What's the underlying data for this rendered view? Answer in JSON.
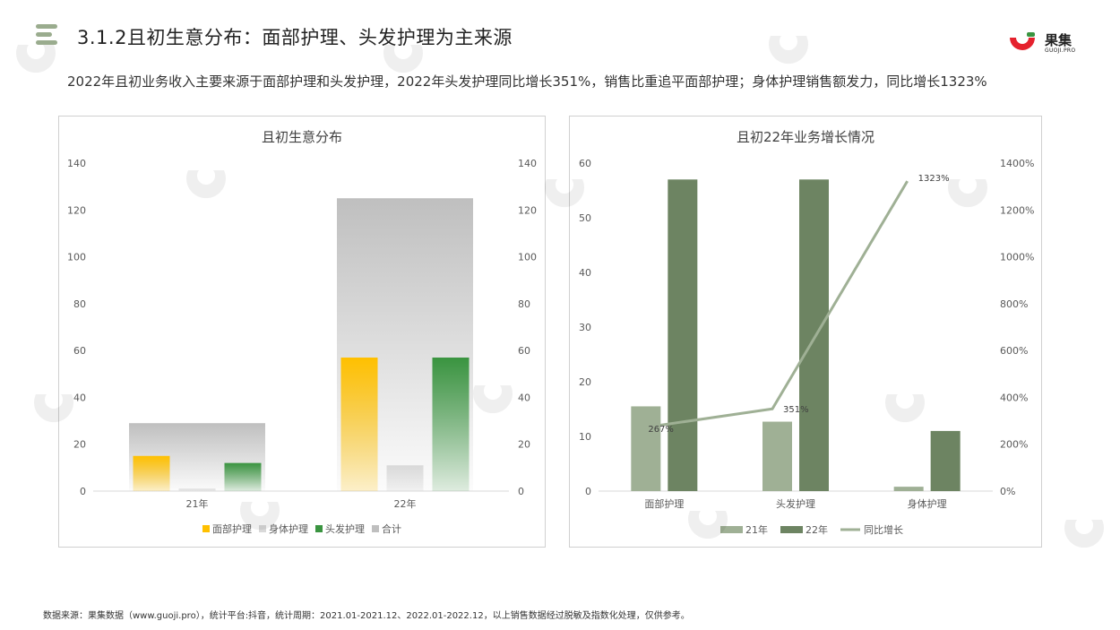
{
  "header": {
    "title": "3.1.2且初生意分布：面部护理、头发护理为主来源",
    "logo_name": "果集",
    "logo_sub": "GUOJI.PRO"
  },
  "description": "2022年且初业务收入主要来源于面部护理和头发护理，2022年头发护理同比增长351%，销售比重追平面部护理；身体护理销售额发力，同比增长1323%",
  "footer": "数据来源：果集数据（www.guoji.pro），统计平台:抖音，统计周期：2021.01-2021.12、2022.01-2022.12，以上销售数据经过脱敏及指数化处理，仅供参考。",
  "colors": {
    "face": "#ffc000",
    "body": "#d9d9d9",
    "hair": "#3a9440",
    "total": "#bfbfbf",
    "y21": "#9fb095",
    "y22": "#6d8462",
    "growth": "#9fb095",
    "accent_menu": "#9aac8e",
    "logo_red": "#e5212d"
  },
  "chart_data": [
    {
      "type": "bar",
      "title": "且初生意分布",
      "categories": [
        "21年",
        "22年"
      ],
      "series": [
        {
          "name": "面部护理",
          "values": [
            15,
            57
          ]
        },
        {
          "name": "身体护理",
          "values": [
            1,
            11
          ]
        },
        {
          "name": "头发护理",
          "values": [
            12,
            57
          ]
        },
        {
          "name": "合计",
          "values": [
            29,
            125
          ]
        }
      ],
      "y_ticks": [
        "0",
        "20",
        "40",
        "60",
        "80",
        "100",
        "120",
        "140"
      ],
      "ylim": [
        0,
        140
      ],
      "grid": false,
      "legend": "bottom"
    },
    {
      "type": "bar",
      "title": "且初22年业务增长情况",
      "categories": [
        "面部护理",
        "头发护理",
        "身体护理"
      ],
      "series": [
        {
          "name": "21年",
          "values": [
            15.5,
            12.7,
            0.8
          ]
        },
        {
          "name": "22年",
          "values": [
            57,
            57,
            11
          ]
        },
        {
          "name": "同比增长",
          "type": "line",
          "axis": "right",
          "values": [
            267,
            351,
            1323
          ],
          "labels": [
            "267%",
            "351%",
            "1323%"
          ]
        }
      ],
      "y_ticks": [
        "0",
        "10",
        "20",
        "30",
        "40",
        "50",
        "60"
      ],
      "y2_ticks": [
        "0%",
        "200%",
        "400%",
        "600%",
        "800%",
        "1000%",
        "1200%",
        "1400%"
      ],
      "ylim": [
        0,
        60
      ],
      "y2lim": [
        0,
        1400
      ],
      "grid": false,
      "legend": "bottom"
    }
  ]
}
